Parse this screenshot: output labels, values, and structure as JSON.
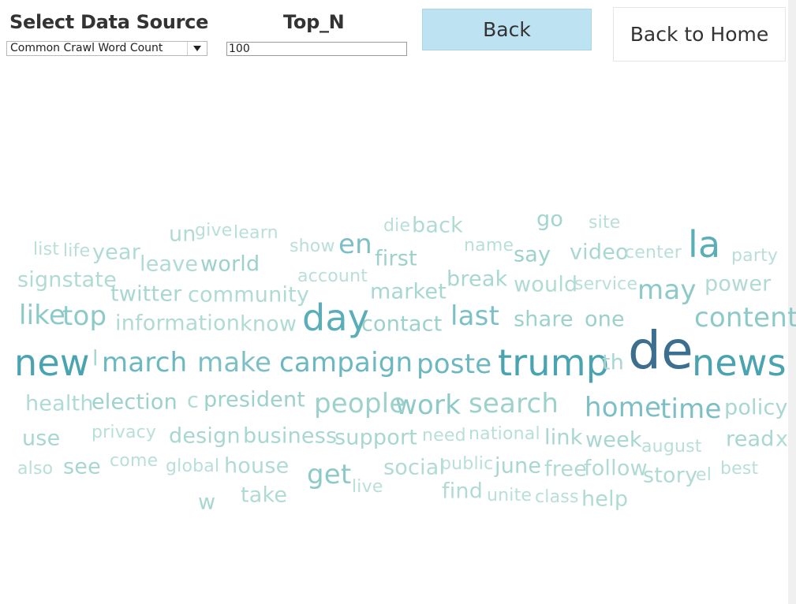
{
  "header": {
    "source_label": "Select Data Source",
    "source_value": "Common Crawl Word Count",
    "topn_label": "Top_N",
    "topn_value": "100",
    "back_label": "Back",
    "home_label": "Back to Home"
  },
  "word_cloud": {
    "words": [
      {
        "text": "de",
        "level": 5,
        "color": "#3b6e8f"
      },
      {
        "text": "news",
        "level": 4,
        "color": "#4aa3b0"
      },
      {
        "text": "new",
        "level": 4,
        "color": "#4aa3b0"
      },
      {
        "text": "trump",
        "level": 4,
        "color": "#4aa3b0"
      },
      {
        "text": "la",
        "level": 4,
        "color": "#5aaeb8"
      },
      {
        "text": "day",
        "level": 4,
        "color": "#5aaeb8"
      },
      {
        "text": "march",
        "level": 3,
        "color": "#6bb8c0"
      },
      {
        "text": "make",
        "level": 3,
        "color": "#7cc0c6"
      },
      {
        "text": "campaign",
        "level": 3,
        "color": "#6bb8c0"
      },
      {
        "text": "poste",
        "level": 3,
        "color": "#6bb8c0"
      },
      {
        "text": "time",
        "level": 3,
        "color": "#7cc0c6"
      },
      {
        "text": "home",
        "level": 3,
        "color": "#7cc0c6"
      },
      {
        "text": "en",
        "level": 3,
        "color": "#7cc0c6"
      },
      {
        "text": "last",
        "level": 3,
        "color": "#7cc0c6"
      },
      {
        "text": "content",
        "level": 3,
        "color": "#8ccac8"
      },
      {
        "text": "may",
        "level": 3,
        "color": "#8ccac8"
      },
      {
        "text": "like",
        "level": 3,
        "color": "#8ccac8"
      },
      {
        "text": "top",
        "level": 3,
        "color": "#8ccac8"
      },
      {
        "text": "get",
        "level": 3,
        "color": "#8ccac8"
      },
      {
        "text": "work",
        "level": 3,
        "color": "#8ccac8"
      },
      {
        "text": "search",
        "level": 3,
        "color": "#9cd1cc"
      },
      {
        "text": "people",
        "level": 3,
        "color": "#9cd1cc"
      },
      {
        "text": "president",
        "level": 2,
        "color": "#9cd1cc"
      },
      {
        "text": "election",
        "level": 2,
        "color": "#9cd1cc"
      },
      {
        "text": "world",
        "level": 2,
        "color": "#9cd1cc"
      },
      {
        "text": "first",
        "level": 2,
        "color": "#9cd1cc"
      },
      {
        "text": "contact",
        "level": 2,
        "color": "#9cd1cc"
      },
      {
        "text": "share",
        "level": 2,
        "color": "#9cd1cc"
      },
      {
        "text": "one",
        "level": 2,
        "color": "#9cd1cc"
      },
      {
        "text": "say",
        "level": 2,
        "color": "#9cd1cc"
      },
      {
        "text": "go",
        "level": 2,
        "color": "#a3d4cf"
      },
      {
        "text": "policy",
        "level": 2,
        "color": "#a8d7d1"
      },
      {
        "text": "read",
        "level": 2,
        "color": "#a8d7d1"
      },
      {
        "text": "design",
        "level": 2,
        "color": "#a8d7d1"
      },
      {
        "text": "business",
        "level": 2,
        "color": "#a8d7d1"
      },
      {
        "text": "support",
        "level": 2,
        "color": "#a8d7d1"
      },
      {
        "text": "week",
        "level": 2,
        "color": "#a8d7d1"
      },
      {
        "text": "link",
        "level": 2,
        "color": "#a8d7d1"
      },
      {
        "text": "video",
        "level": 2,
        "color": "#a8d7d1"
      },
      {
        "text": "twitter",
        "level": 2,
        "color": "#a8d7d1"
      },
      {
        "text": "market",
        "level": 2,
        "color": "#a8d7d1"
      },
      {
        "text": "break",
        "level": 2,
        "color": "#a8d7d1"
      },
      {
        "text": "see",
        "level": 2,
        "color": "#a8d7d1"
      },
      {
        "text": "use",
        "level": 2,
        "color": "#a8d7d1"
      },
      {
        "text": "th",
        "level": 2,
        "color": "#a8d7d1"
      },
      {
        "text": "w",
        "level": 2,
        "color": "#a8d7d1"
      },
      {
        "text": "june",
        "level": 2,
        "color": "#a8d7d1"
      },
      {
        "text": "know",
        "level": 2,
        "color": "#b0dbd4"
      },
      {
        "text": "health",
        "level": 2,
        "color": "#b0dbd4"
      },
      {
        "text": "information",
        "level": 2,
        "color": "#b0dbd4"
      },
      {
        "text": "community",
        "level": 2,
        "color": "#b0dbd4"
      },
      {
        "text": "story",
        "level": 2,
        "color": "#b0dbd4"
      },
      {
        "text": "follow",
        "level": 2,
        "color": "#b0dbd4"
      },
      {
        "text": "free",
        "level": 2,
        "color": "#b0dbd4"
      },
      {
        "text": "house",
        "level": 2,
        "color": "#b0dbd4"
      },
      {
        "text": "signstate",
        "level": 2,
        "color": "#b0dbd4"
      },
      {
        "text": "year",
        "level": 2,
        "color": "#b0dbd4"
      },
      {
        "text": "leave",
        "level": 2,
        "color": "#b0dbd4"
      },
      {
        "text": "un",
        "level": 2,
        "color": "#b0dbd4"
      },
      {
        "text": "back",
        "level": 2,
        "color": "#b0dbd4"
      },
      {
        "text": "power",
        "level": 2,
        "color": "#b0dbd4"
      },
      {
        "text": "would",
        "level": 2,
        "color": "#b0dbd4"
      },
      {
        "text": "social",
        "level": 2,
        "color": "#b0dbd4"
      },
      {
        "text": "take",
        "level": 2,
        "color": "#b0dbd4"
      },
      {
        "text": "find",
        "level": 2,
        "color": "#b0dbd4"
      },
      {
        "text": "help",
        "level": 2,
        "color": "#b0dbd4"
      },
      {
        "text": "c",
        "level": 2,
        "color": "#b0dbd4"
      },
      {
        "text": "l",
        "level": 2,
        "color": "#a8d7d1"
      },
      {
        "text": "x",
        "level": 2,
        "color": "#b0dbd4"
      },
      {
        "text": "site",
        "level": 1,
        "color": "#b8dfd8"
      },
      {
        "text": "party",
        "level": 1,
        "color": "#b8dfd8"
      },
      {
        "text": "center",
        "level": 1,
        "color": "#b8dfd8"
      },
      {
        "text": "service",
        "level": 1,
        "color": "#b8dfd8"
      },
      {
        "text": "account",
        "level": 1,
        "color": "#b8dfd8"
      },
      {
        "text": "show",
        "level": 1,
        "color": "#b8dfd8"
      },
      {
        "text": "name",
        "level": 1,
        "color": "#b8dfd8"
      },
      {
        "text": "die",
        "level": 1,
        "color": "#b8dfd8"
      },
      {
        "text": "give",
        "level": 1,
        "color": "#b8dfd8"
      },
      {
        "text": "learn",
        "level": 1,
        "color": "#b8dfd8"
      },
      {
        "text": "list",
        "level": 1,
        "color": "#b8dfd8"
      },
      {
        "text": "life",
        "level": 1,
        "color": "#b8dfd8"
      },
      {
        "text": "privacy",
        "level": 1,
        "color": "#b8dfd8"
      },
      {
        "text": "need",
        "level": 1,
        "color": "#b8dfd8"
      },
      {
        "text": "national",
        "level": 1,
        "color": "#b8dfd8"
      },
      {
        "text": "august",
        "level": 1,
        "color": "#b8dfd8"
      },
      {
        "text": "also",
        "level": 1,
        "color": "#b8dfd8"
      },
      {
        "text": "come",
        "level": 1,
        "color": "#b8dfd8"
      },
      {
        "text": "global",
        "level": 1,
        "color": "#b8dfd8"
      },
      {
        "text": "public",
        "level": 1,
        "color": "#b8dfd8"
      },
      {
        "text": "live",
        "level": 1,
        "color": "#b8dfd8"
      },
      {
        "text": "el",
        "level": 1,
        "color": "#b8dfd8"
      },
      {
        "text": "best",
        "level": 1,
        "color": "#b8dfd8"
      },
      {
        "text": "unite",
        "level": 1,
        "color": "#b8dfd8"
      },
      {
        "text": "class",
        "level": 1,
        "color": "#b8dfd8"
      }
    ]
  }
}
